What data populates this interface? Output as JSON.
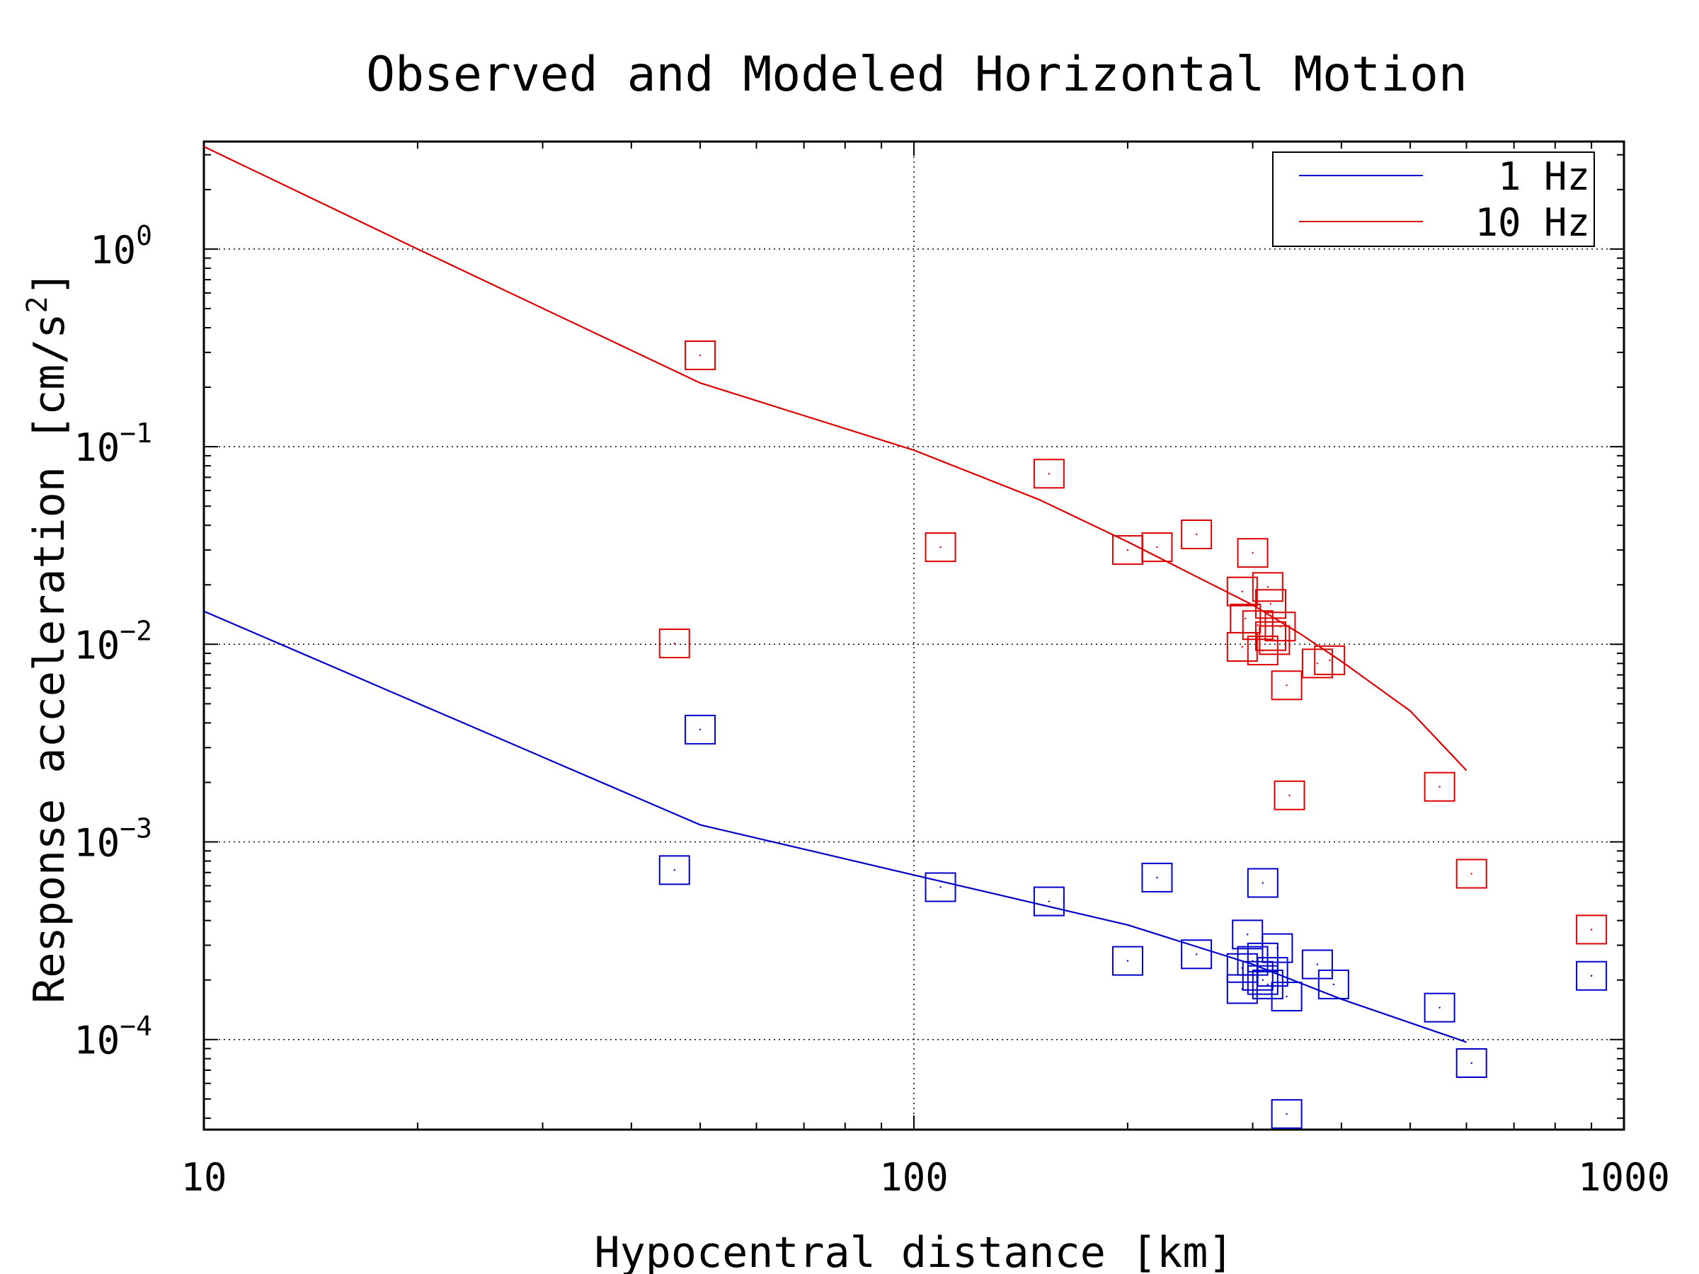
{
  "chart_data": {
    "type": "scatter",
    "title": "Observed and Modeled Horizontal Motion",
    "xlabel": "Hypocentral distance [km]",
    "ylabel_text": "Response acceleration [cm/s",
    "ylabel_sup": "2",
    "ylabel_close": "]",
    "x_scale": "log",
    "y_scale": "log",
    "xlim": [
      10,
      1000
    ],
    "ylim": [
      3.5e-05,
      3.5
    ],
    "grid": true,
    "legend_position": "top-right",
    "x_ticks": [
      {
        "value": 10,
        "label": "10"
      },
      {
        "value": 100,
        "label": "100"
      },
      {
        "value": 1000,
        "label": "1000"
      }
    ],
    "y_ticks": [
      {
        "value": 1,
        "base": "10",
        "exp": "0"
      },
      {
        "value": 0.1,
        "base": "10",
        "exp": "−1"
      },
      {
        "value": 0.01,
        "base": "10",
        "exp": "−2"
      },
      {
        "value": 0.001,
        "base": "10",
        "exp": "−3"
      },
      {
        "value": 0.0001,
        "base": "10",
        "exp": "−4"
      }
    ],
    "series": [
      {
        "name": "1 Hz",
        "color": "#0000cc",
        "model_line": [
          [
            10,
            0.0147
          ],
          [
            50,
            0.00122
          ],
          [
            100,
            0.00068
          ],
          [
            200,
            0.00038
          ],
          [
            300,
            0.00024
          ],
          [
            400,
            0.00016
          ],
          [
            600,
            9.7e-05
          ]
        ],
        "observed": [
          [
            46,
            0.00072
          ],
          [
            50,
            0.0037
          ],
          [
            109,
            0.00059
          ],
          [
            155,
            0.0005
          ],
          [
            200,
            0.00025
          ],
          [
            220,
            0.00066
          ],
          [
            250,
            0.00027
          ],
          [
            290,
            0.00023
          ],
          [
            290,
            0.00018
          ],
          [
            295,
            0.00034
          ],
          [
            300,
            0.00025
          ],
          [
            305,
            0.00021
          ],
          [
            310,
            0.00026
          ],
          [
            310,
            0.0002
          ],
          [
            310,
            0.00062
          ],
          [
            315,
            0.00019
          ],
          [
            320,
            0.00022
          ],
          [
            325,
            0.00029
          ],
          [
            335,
            0.000165
          ],
          [
            335,
            4.2e-05
          ],
          [
            370,
            0.00024
          ],
          [
            390,
            0.00019
          ],
          [
            550,
            0.000145
          ],
          [
            610,
            7.6e-05
          ],
          [
            900,
            0.00021
          ]
        ]
      },
      {
        "name": "10 Hz",
        "color": "#dd0000",
        "model_line": [
          [
            10,
            3.3
          ],
          [
            20,
            1.0
          ],
          [
            50,
            0.21
          ],
          [
            100,
            0.096
          ],
          [
            150,
            0.054
          ],
          [
            200,
            0.033
          ],
          [
            250,
            0.022
          ],
          [
            300,
            0.0158
          ],
          [
            350,
            0.0113
          ],
          [
            400,
            0.0082
          ],
          [
            500,
            0.0046
          ],
          [
            600,
            0.0023
          ]
        ],
        "observed": [
          [
            46,
            0.0101
          ],
          [
            50,
            0.29
          ],
          [
            109,
            0.031
          ],
          [
            155,
            0.073
          ],
          [
            200,
            0.03
          ],
          [
            220,
            0.031
          ],
          [
            250,
            0.036
          ],
          [
            290,
            0.0185
          ],
          [
            293,
            0.0135
          ],
          [
            290,
            0.0097
          ],
          [
            300,
            0.029
          ],
          [
            305,
            0.0125
          ],
          [
            310,
            0.0093
          ],
          [
            315,
            0.0195
          ],
          [
            318,
            0.016
          ],
          [
            318,
            0.011
          ],
          [
            322,
            0.0105
          ],
          [
            328,
            0.0123
          ],
          [
            335,
            0.0062
          ],
          [
            338,
            0.00172
          ],
          [
            370,
            0.008
          ],
          [
            385,
            0.0083
          ],
          [
            550,
            0.0019
          ],
          [
            610,
            0.00069
          ],
          [
            900,
            0.00036
          ]
        ]
      }
    ]
  }
}
